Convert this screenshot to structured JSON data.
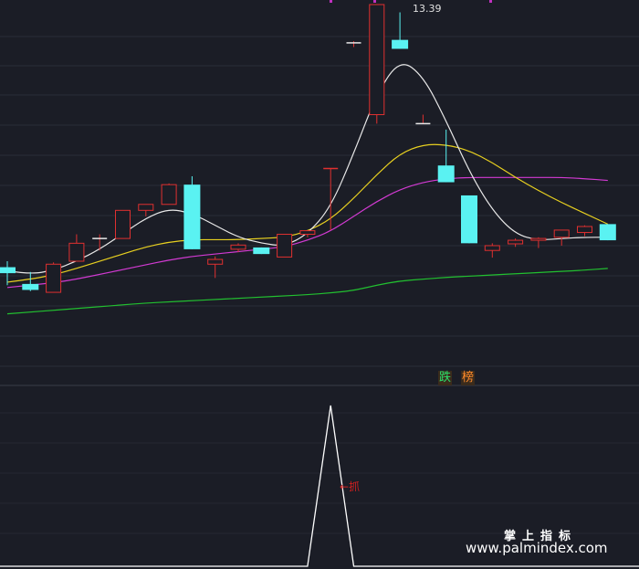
{
  "chart_data": {
    "type": "candlestick",
    "peak_label": "13.39",
    "tags": [
      "跌",
      "榜"
    ],
    "lower_panel_label": "抓",
    "watermark": {
      "cn": "掌上指标",
      "url": "www.palmindex.com"
    },
    "colors": {
      "up": "#e03030",
      "down": "#5af2f2",
      "ma_white": "#e8e8e8",
      "ma_yellow": "#e8d020",
      "ma_magenta": "#d23ad2",
      "ma_green": "#22c030",
      "signal": "#ffffff"
    },
    "candles": [
      {
        "o": 9.0,
        "c": 8.9,
        "h": 9.1,
        "l": 8.7
      },
      {
        "o": 8.72,
        "c": 8.62,
        "h": 8.92,
        "l": 8.6
      },
      {
        "o": 8.58,
        "c": 9.05,
        "h": 9.08,
        "l": 8.58
      },
      {
        "o": 9.1,
        "c": 9.4,
        "h": 9.55,
        "l": 9.1
      },
      {
        "o": 9.48,
        "c": 9.48,
        "h": 9.55,
        "l": 9.28
      },
      {
        "o": 9.48,
        "c": 9.95,
        "h": 9.95,
        "l": 9.48
      },
      {
        "o": 9.95,
        "c": 10.05,
        "h": 10.05,
        "l": 9.85
      },
      {
        "o": 10.05,
        "c": 10.38,
        "h": 10.4,
        "l": 10.05
      },
      {
        "o": 10.38,
        "c": 9.3,
        "h": 10.52,
        "l": 9.3
      },
      {
        "o": 9.05,
        "c": 9.13,
        "h": 9.18,
        "l": 8.82
      },
      {
        "o": 9.3,
        "c": 9.37,
        "h": 9.4,
        "l": 9.25
      },
      {
        "o": 9.33,
        "c": 9.22,
        "h": 9.33,
        "l": 9.22
      },
      {
        "o": 9.17,
        "c": 9.55,
        "h": 9.55,
        "l": 9.17
      },
      {
        "o": 9.55,
        "c": 9.61,
        "h": 9.61,
        "l": 9.5
      },
      {
        "o": 10.65,
        "c": 10.65,
        "h": 10.65,
        "l": 9.62
      },
      {
        "o": 12.75,
        "c": 12.75,
        "h": 12.78,
        "l": 12.68
      },
      {
        "o": 11.55,
        "c": 13.39,
        "h": 13.39,
        "l": 11.4
      },
      {
        "o": 12.8,
        "c": 12.65,
        "h": 13.26,
        "l": 12.65
      },
      {
        "o": 11.4,
        "c": 11.4,
        "h": 11.55,
        "l": 11.4
      },
      {
        "o": 10.7,
        "c": 10.42,
        "h": 11.3,
        "l": 10.42
      },
      {
        "o": 10.2,
        "c": 9.4,
        "h": 10.2,
        "l": 9.4
      },
      {
        "o": 9.28,
        "c": 9.36,
        "h": 9.4,
        "l": 9.16
      },
      {
        "o": 9.39,
        "c": 9.45,
        "h": 9.48,
        "l": 9.34
      },
      {
        "o": 9.45,
        "c": 9.48,
        "h": 9.5,
        "l": 9.32
      },
      {
        "o": 9.5,
        "c": 9.62,
        "h": 9.62,
        "l": 9.36
      },
      {
        "o": 9.58,
        "c": 9.68,
        "h": 9.7,
        "l": 9.52
      },
      {
        "o": 9.72,
        "c": 9.45,
        "h": 9.72,
        "l": 9.45
      }
    ],
    "ma_white": [
      8.94,
      8.88,
      8.95,
      9.1,
      9.3,
      9.56,
      9.82,
      9.98,
      9.9,
      9.7,
      9.5,
      9.4,
      9.35,
      9.55,
      10.0,
      10.9,
      11.9,
      12.48,
      12.2,
      11.45,
      10.6,
      9.95,
      9.55,
      9.45,
      9.48,
      9.5,
      9.5
    ],
    "ma_yellow": [
      8.75,
      8.8,
      8.87,
      8.98,
      9.1,
      9.22,
      9.34,
      9.42,
      9.46,
      9.46,
      9.46,
      9.48,
      9.5,
      9.6,
      9.8,
      10.15,
      10.55,
      10.9,
      11.05,
      11.05,
      10.95,
      10.75,
      10.5,
      10.28,
      10.08,
      9.9,
      9.72
    ],
    "ma_magenta": [
      8.66,
      8.7,
      8.74,
      8.8,
      8.88,
      8.96,
      9.04,
      9.12,
      9.18,
      9.22,
      9.26,
      9.3,
      9.34,
      9.45,
      9.6,
      9.85,
      10.1,
      10.3,
      10.42,
      10.48,
      10.5,
      10.5,
      10.5,
      10.5,
      10.5,
      10.48,
      10.45
    ],
    "ma_green": [
      8.22,
      8.25,
      8.28,
      8.31,
      8.34,
      8.37,
      8.4,
      8.42,
      8.44,
      8.46,
      8.48,
      8.5,
      8.52,
      8.54,
      8.57,
      8.61,
      8.7,
      8.77,
      8.8,
      8.83,
      8.85,
      8.87,
      8.89,
      8.91,
      8.93,
      8.95,
      8.98
    ],
    "signal": [
      0,
      0,
      0,
      0,
      0,
      0,
      0,
      0,
      0,
      0,
      0,
      0,
      0,
      0,
      1,
      0,
      0,
      0,
      0,
      0,
      0,
      0,
      0,
      0,
      0,
      0,
      0
    ]
  }
}
